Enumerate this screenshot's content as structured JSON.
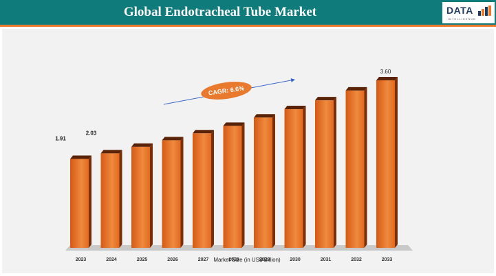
{
  "header": {
    "title": "Global Endotracheal Tube Market",
    "logo_text": "DATA",
    "logo_subtext": "INTELLIGENCE"
  },
  "colors": {
    "header_bg": "#0f7b7b",
    "accent": "#e8792d",
    "bar_front": "#e2691f",
    "bar_side": "#7a2f08"
  },
  "chart_data": {
    "type": "bar",
    "categories": [
      "2023",
      "2024",
      "2025",
      "2026",
      "2027",
      "2028",
      "2029",
      "2030",
      "2031",
      "2032",
      "2033"
    ],
    "values": [
      1.91,
      2.03,
      2.17,
      2.31,
      2.46,
      2.62,
      2.8,
      2.98,
      3.17,
      3.38,
      3.6
    ],
    "data_labels": [
      {
        "index": 0,
        "text": "1.91"
      },
      {
        "index": 1,
        "text": "2.03"
      },
      {
        "index": 10,
        "text": "3.60"
      }
    ],
    "xlabel": "Market Size (in US$ Billion)",
    "ylabel": "",
    "ylim": [
      0,
      3.8
    ],
    "grid": false,
    "legend": "none",
    "annotation": {
      "text": "CAGR: 6.6%",
      "style": "orange ellipse with blue trend arrow"
    }
  }
}
